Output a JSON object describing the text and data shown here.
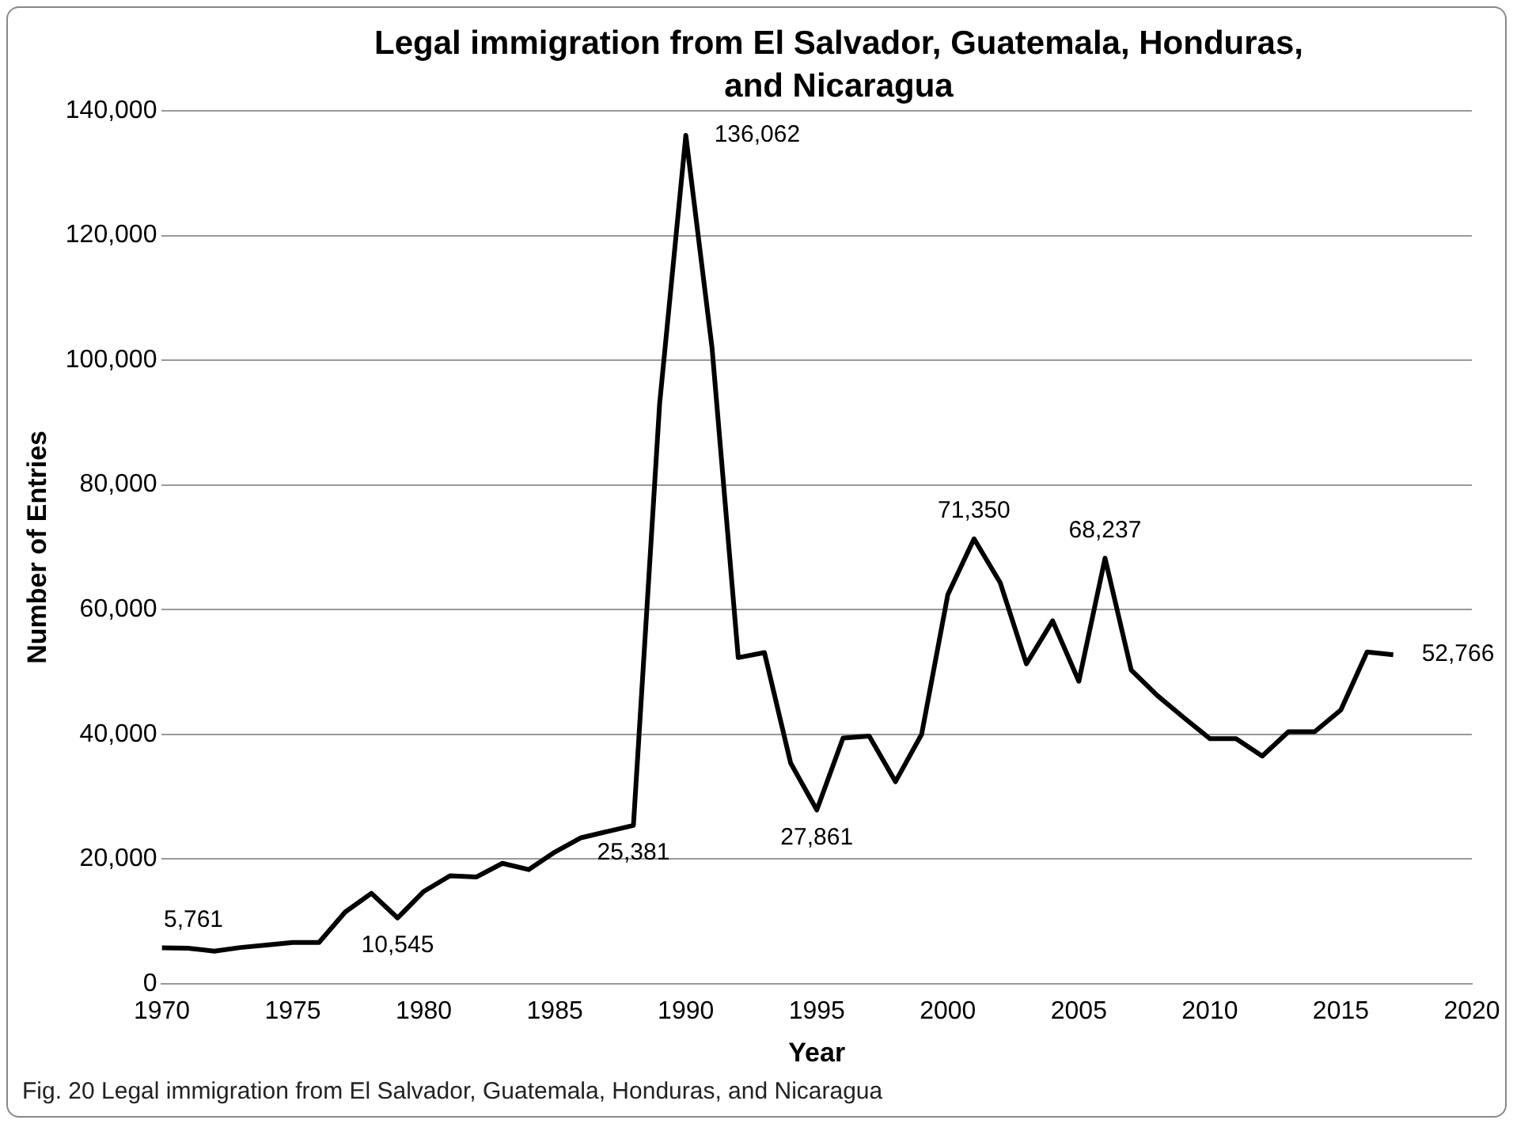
{
  "chart_data": {
    "type": "line",
    "title": "Legal immigration from El Salvador, Guatemala, Honduras, and Nicaragua",
    "xlabel": "Year",
    "ylabel": "Number of Entries",
    "x": [
      1970,
      1971,
      1972,
      1973,
      1974,
      1975,
      1976,
      1977,
      1978,
      1979,
      1980,
      1981,
      1982,
      1983,
      1984,
      1985,
      1986,
      1987,
      1988,
      1989,
      1990,
      1991,
      1992,
      1993,
      1994,
      1995,
      1996,
      1997,
      1998,
      1999,
      2000,
      2001,
      2002,
      2003,
      2004,
      2005,
      2006,
      2007,
      2008,
      2009,
      2010,
      2011,
      2012,
      2013,
      2014,
      2015,
      2016,
      2017
    ],
    "series": [
      {
        "color": "#000000",
        "values": [
          5761,
          5700,
          5200,
          5800,
          6200,
          6600,
          6600,
          11500,
          14500,
          10545,
          14800,
          17300,
          17100,
          19300,
          18300,
          21100,
          23400,
          24400,
          25381,
          93000,
          136062,
          102000,
          52300,
          53100,
          35400,
          27861,
          39400,
          39700,
          32400,
          40000,
          62400,
          71350,
          64300,
          51300,
          58200,
          48500,
          68237,
          50300,
          46200,
          42700,
          39300,
          39300,
          36500,
          40400,
          40400,
          43900,
          53200,
          52766
        ],
        "value_labels": [
          "5,761",
          null,
          null,
          null,
          null,
          null,
          null,
          null,
          null,
          "10,545",
          null,
          null,
          null,
          null,
          null,
          null,
          null,
          null,
          "25,381",
          null,
          "136,062",
          null,
          null,
          null,
          null,
          "27,861",
          null,
          null,
          null,
          null,
          null,
          "71,350",
          null,
          null,
          null,
          null,
          "68,237",
          null,
          null,
          null,
          null,
          null,
          null,
          null,
          null,
          null,
          null,
          "52,766"
        ]
      }
    ],
    "xlim": [
      1970,
      2020
    ],
    "xticks": [
      1970,
      1975,
      1980,
      1985,
      1990,
      1995,
      2000,
      2005,
      2010,
      2015,
      2020
    ],
    "ylim": [
      0,
      140000
    ],
    "yticks": [
      0,
      {
        "value": 20000,
        "label": "20,000"
      },
      {
        "value": 40000,
        "label": "40,000"
      },
      {
        "value": 60000,
        "label": "60,000"
      },
      {
        "value": 80000,
        "label": "80,000"
      },
      {
        "value": 100000,
        "label": "100,000"
      },
      {
        "value": 120000,
        "label": "120,000"
      },
      {
        "value": 140000,
        "label": "140,000"
      }
    ],
    "grid": "y",
    "legend": false,
    "marker": "none",
    "line_style": "solid",
    "annotations": [
      "Fig. 20 Legal immigration from El Salvador, Guatemala, Honduras, and Nicaragua"
    ]
  }
}
